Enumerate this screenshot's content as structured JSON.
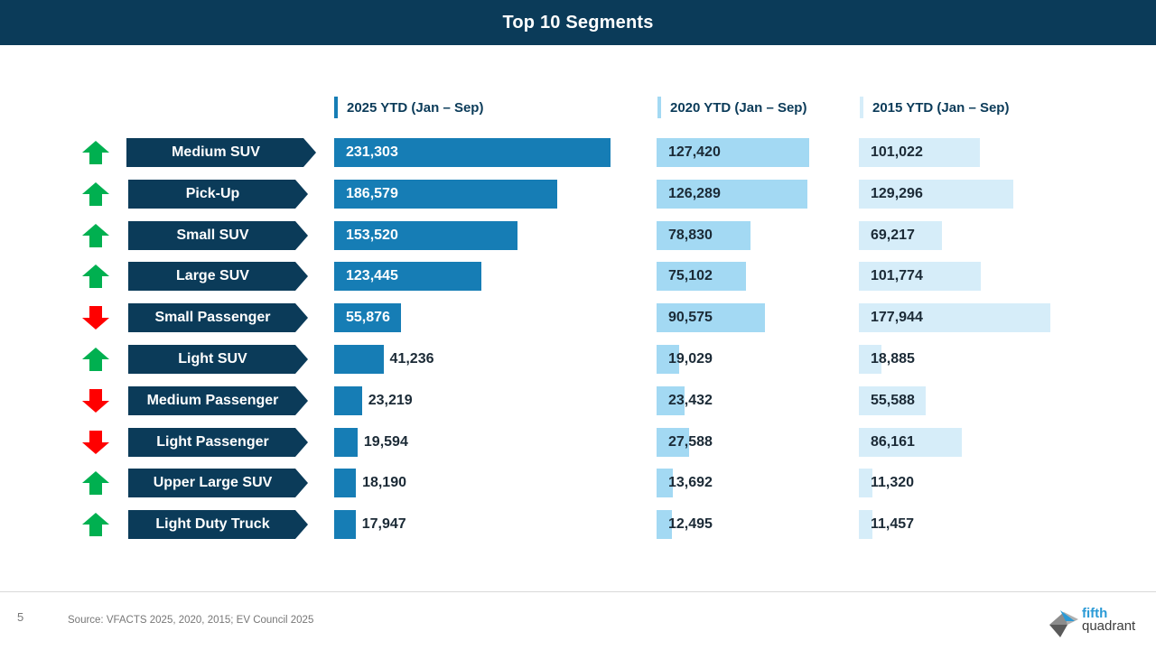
{
  "header": {
    "title": "Top 10 Segments"
  },
  "columns": {
    "c2025": {
      "label": "2025 YTD (Jan – Sep)",
      "color": "#167db5"
    },
    "c2020": {
      "label": "2020 YTD (Jan – Sep)",
      "color": "#a3d9f3"
    },
    "c2015": {
      "label": "2015 YTD (Jan – Sep)",
      "color": "#d6edf9"
    }
  },
  "colors": {
    "header_bg": "#0b3b59",
    "label_bg": "#0b3b59",
    "up_arrow": "#00b050",
    "down_arrow": "#ff0000"
  },
  "chart_data": {
    "type": "bar",
    "title": "Top 10 Segments",
    "orientation": "horizontal",
    "categories": [
      "Medium SUV",
      "Pick-Up",
      "Small SUV",
      "Large SUV",
      "Small Passenger",
      "Light SUV",
      "Medium Passenger",
      "Light Passenger",
      "Upper Large SUV",
      "Light Duty Truck"
    ],
    "trend": [
      "up",
      "up",
      "up",
      "up",
      "down",
      "up",
      "down",
      "down",
      "up",
      "up"
    ],
    "series": [
      {
        "name": "2025 YTD (Jan – Sep)",
        "values": [
          231303,
          186579,
          153520,
          123445,
          55876,
          41236,
          23219,
          19594,
          18190,
          17947
        ],
        "labels": [
          "231,303",
          "186,579",
          "153,520",
          "123,445",
          "55,876",
          "41,236",
          "23,219",
          "19,594",
          "18,190",
          "17,947"
        ]
      },
      {
        "name": "2020 YTD (Jan – Sep)",
        "values": [
          127420,
          126289,
          78830,
          75102,
          90575,
          19029,
          23432,
          27588,
          13692,
          12495
        ],
        "labels": [
          "127,420",
          "126,289",
          "78,830",
          "75,102",
          "90,575",
          "19,029",
          "23,432",
          "27,588",
          "13,692",
          "12,495"
        ]
      },
      {
        "name": "2015 YTD (Jan – Sep)",
        "values": [
          101022,
          129296,
          69217,
          101774,
          177944,
          18885,
          55588,
          86161,
          11320,
          11457
        ],
        "labels": [
          "101,022",
          "129,296",
          "69,217",
          "101,774",
          "177,944",
          "18,885",
          "55,588",
          "86,161",
          "11,320",
          "11,457"
        ]
      }
    ],
    "xlabel": "",
    "ylabel": "",
    "grid": false,
    "legend": "none"
  },
  "footer": {
    "page_number": "5",
    "source": "Source: VFACTS 2025, 2020, 2015; EV Council 2025",
    "logo_line1": "fifth",
    "logo_line2": "quadrant"
  }
}
